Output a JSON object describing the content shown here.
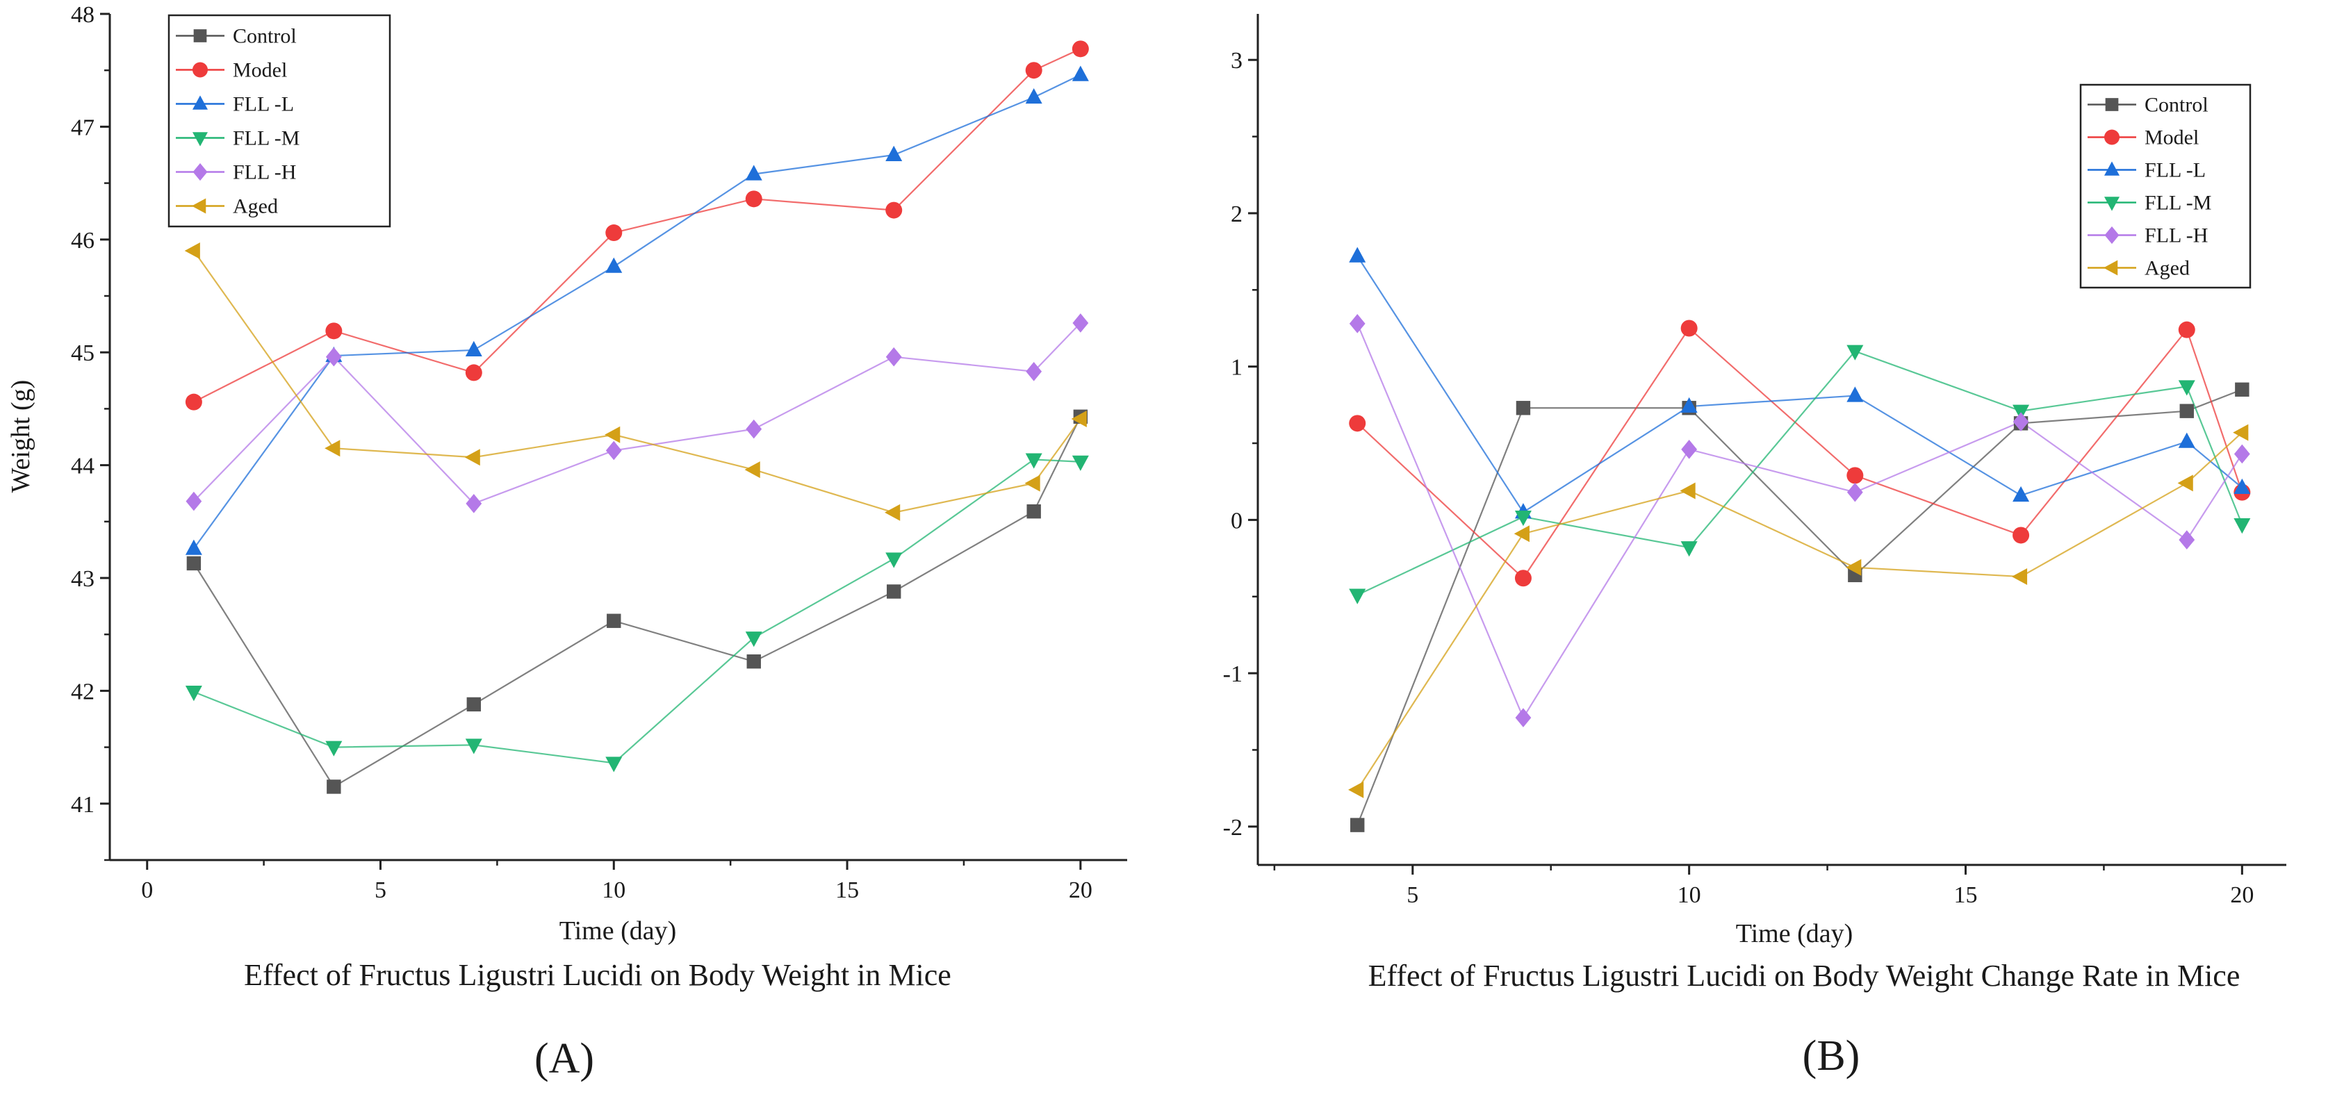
{
  "chart_data": [
    {
      "panel": "A",
      "type": "line",
      "title": "Effect of Fructus Ligustri Lucidi on Body Weight in Mice",
      "panel_label": "(A)",
      "xlabel": "Time (day)",
      "ylabel": "Weight (g)",
      "xlim": [
        -0.8,
        21
      ],
      "ylim": [
        40.5,
        48
      ],
      "xticks": [
        0,
        5,
        10,
        15,
        20
      ],
      "yticks": [
        41,
        42,
        43,
        44,
        45,
        46,
        47,
        48
      ],
      "x": [
        1,
        4,
        7,
        10,
        13,
        16,
        19,
        20
      ],
      "legend_position": "top-left",
      "series": [
        {
          "name": "Control",
          "color": "#555555",
          "marker": "square",
          "values": [
            43.13,
            41.15,
            41.88,
            42.62,
            42.26,
            42.88,
            43.59,
            44.43
          ]
        },
        {
          "name": "Model",
          "color": "#ee3b3b",
          "marker": "circle",
          "values": [
            44.56,
            45.19,
            44.82,
            46.06,
            46.36,
            46.26,
            47.5,
            47.69
          ]
        },
        {
          "name": "FLL -L",
          "color": "#1e6fd9",
          "marker": "triangle-up",
          "values": [
            43.26,
            44.97,
            45.02,
            45.76,
            46.58,
            46.75,
            47.26,
            47.46
          ]
        },
        {
          "name": "FLL -M",
          "color": "#22b573",
          "marker": "triangle-down",
          "values": [
            41.99,
            41.5,
            41.52,
            41.36,
            42.47,
            43.17,
            44.05,
            44.03
          ]
        },
        {
          "name": "FLL -H",
          "color": "#b479e8",
          "marker": "diamond",
          "values": [
            43.68,
            44.96,
            43.66,
            44.13,
            44.32,
            44.96,
            44.83,
            45.26
          ]
        },
        {
          "name": "Aged",
          "color": "#d4a017",
          "marker": "triangle-left",
          "values": [
            45.9,
            44.15,
            44.07,
            44.27,
            43.96,
            43.58,
            43.84,
            44.41
          ]
        }
      ]
    },
    {
      "panel": "B",
      "type": "line",
      "title": "Effect of Fructus Ligustri Lucidi on Body Weight Change Rate in Mice",
      "panel_label": "(B)",
      "xlabel": "Time (day)",
      "ylabel": "",
      "xlim": [
        2.2,
        20.8
      ],
      "ylim": [
        -2.25,
        3.3
      ],
      "xticks": [
        5,
        10,
        15,
        20
      ],
      "yticks": [
        -2,
        -1,
        0,
        1,
        2,
        3
      ],
      "x": [
        4,
        7,
        10,
        13,
        16,
        19,
        20
      ],
      "legend_position": "top-right",
      "series": [
        {
          "name": "Control",
          "color": "#555555",
          "marker": "square",
          "values": [
            -1.99,
            0.73,
            0.73,
            -0.36,
            0.63,
            0.71,
            0.85
          ]
        },
        {
          "name": "Model",
          "color": "#ee3b3b",
          "marker": "circle",
          "values": [
            0.63,
            -0.38,
            1.25,
            0.29,
            -0.1,
            1.24,
            0.18
          ]
        },
        {
          "name": "FLL -L",
          "color": "#1e6fd9",
          "marker": "triangle-up",
          "values": [
            1.72,
            0.05,
            0.74,
            0.81,
            0.16,
            0.51,
            0.21
          ]
        },
        {
          "name": "FLL -M",
          "color": "#22b573",
          "marker": "triangle-down",
          "values": [
            -0.49,
            0.02,
            -0.18,
            1.1,
            0.71,
            0.87,
            -0.03
          ]
        },
        {
          "name": "FLL -H",
          "color": "#b479e8",
          "marker": "diamond",
          "values": [
            1.28,
            -1.29,
            0.46,
            0.18,
            0.64,
            -0.13,
            0.43
          ]
        },
        {
          "name": "Aged",
          "color": "#d4a017",
          "marker": "triangle-left",
          "values": [
            -1.76,
            -0.09,
            0.19,
            -0.31,
            -0.37,
            0.24,
            0.57
          ]
        }
      ]
    }
  ]
}
